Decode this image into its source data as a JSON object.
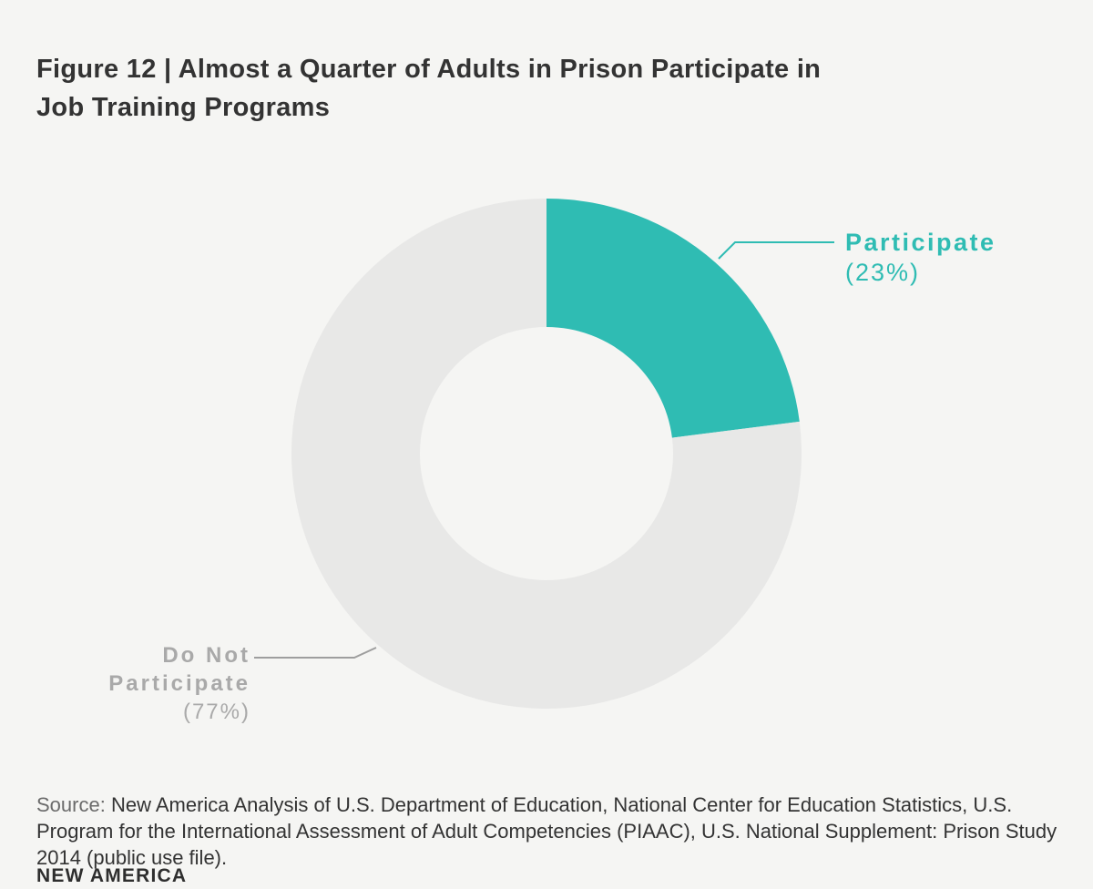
{
  "figure": {
    "title": "Figure 12 | Almost a Quarter of Adults in Prison Participate in\nJob Training Programs"
  },
  "chart_data": {
    "type": "pie",
    "subtype": "donut",
    "title": "Figure 12 | Almost a Quarter of Adults in Prison Participate in Job Training Programs",
    "categories": [
      "Participate",
      "Do Not Participate"
    ],
    "values": [
      23,
      77
    ],
    "unit": "%",
    "colors": [
      "#2fbcb3",
      "#e8e8e7"
    ],
    "slice_labels": [
      "Participate (23%)",
      "Do Not Participate (77%)"
    ],
    "hole_ratio": 0.5,
    "start_angle": "12 o'clock",
    "direction": "clockwise",
    "legend": "none (direct callout labels with leader lines)"
  },
  "labels": {
    "participate": {
      "name": "Participate",
      "value": "(23%)"
    },
    "do_not_participate": {
      "name": "Do Not Participate",
      "value": "(77%)"
    }
  },
  "source": {
    "prefix": "Source:",
    "text": "New America Analysis of U.S. Department of Education, National Center for Education Statistics, U.S. Program for the International Assessment of Adult Competencies (PIAAC), U.S. National Supplement: Prison Study 2014 (public use file)."
  },
  "footer": {
    "logo_text": "NEW AMERICA"
  },
  "colors": {
    "background": "#f5f5f3",
    "teal": "#2fbcb3",
    "slice_gray": "#e8e8e7",
    "label_gray": "#a9a9a9",
    "leader_gray": "#9e9e9e",
    "title_text": "#333333",
    "body_text": "#333333",
    "source_prefix": "#6b6b6b",
    "brand_text": "#2e2e2e"
  }
}
